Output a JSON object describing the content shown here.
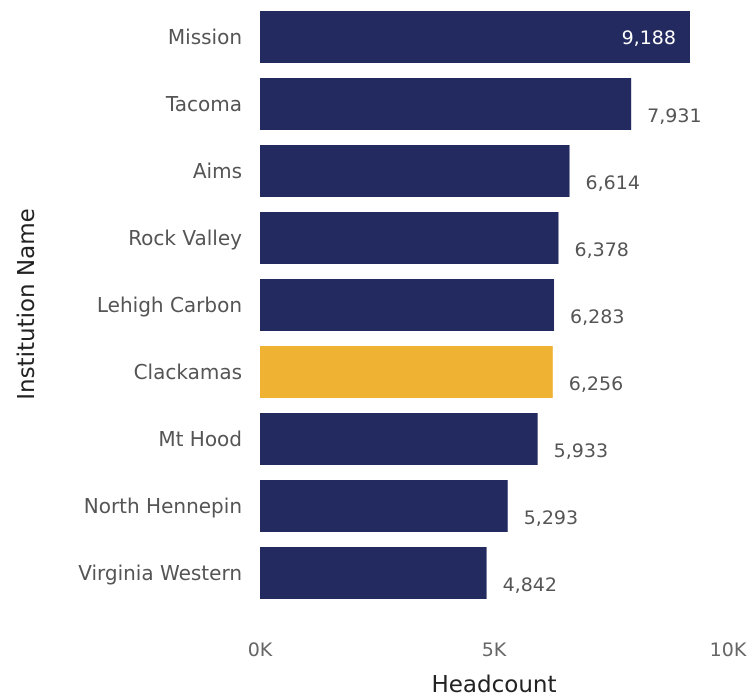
{
  "chart_data": {
    "type": "bar",
    "orientation": "horizontal",
    "categories": [
      "Mission",
      "Tacoma",
      "Aims",
      "Rock Valley",
      "Lehigh Carbon",
      "Clackamas",
      "Mt Hood",
      "North Hennepin",
      "Virginia Western"
    ],
    "values": [
      9188,
      7931,
      6614,
      6378,
      6283,
      6256,
      5933,
      5293,
      4842
    ],
    "value_labels": [
      "9,188",
      "7,931",
      "6,614",
      "6,378",
      "6,283",
      "6,256",
      "5,933",
      "5,293",
      "4,842"
    ],
    "highlight_index": 5,
    "xlabel": "Headcount",
    "ylabel": "Institution Name",
    "xlim": [
      0,
      10000
    ],
    "x_ticks": [
      0,
      5000,
      10000
    ],
    "x_tick_labels": [
      "0K",
      "5K",
      "10K"
    ],
    "grid": false,
    "colors": {
      "bar": "#222a60",
      "highlight": "#f0b232",
      "label_inside": "#ffffff",
      "label_outside": "#555555"
    }
  }
}
